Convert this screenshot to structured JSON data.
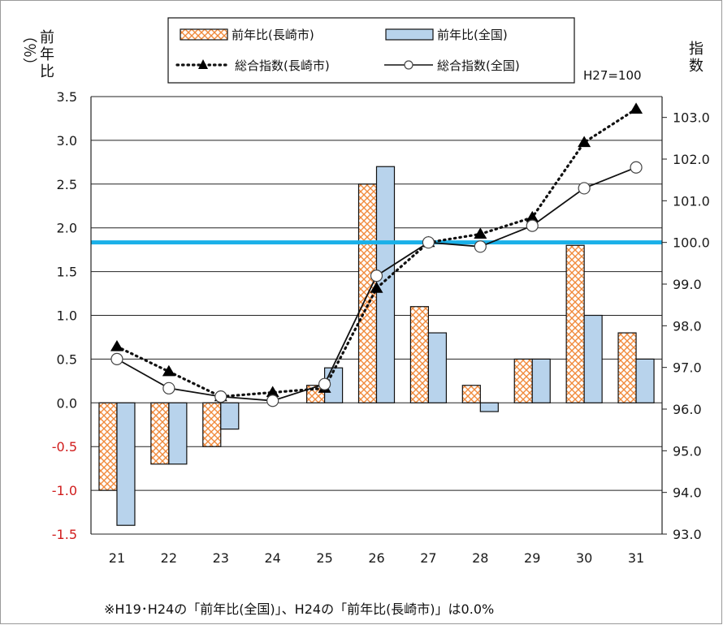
{
  "chart_data": {
    "type": "bar",
    "categories": [
      "21",
      "22",
      "23",
      "24",
      "25",
      "26",
      "27",
      "28",
      "29",
      "30",
      "31"
    ],
    "series": [
      {
        "name": "前年比(長崎市)",
        "type": "bar",
        "axis": "left",
        "pattern": "crosshatch-orange",
        "values": [
          -1.0,
          -0.7,
          -0.5,
          0.0,
          0.2,
          2.5,
          1.1,
          0.2,
          0.5,
          1.8,
          0.8
        ]
      },
      {
        "name": "前年比(全国)",
        "type": "bar",
        "axis": "left",
        "color": "#b8d3ec",
        "values": [
          -1.4,
          -0.7,
          -0.3,
          0.0,
          0.4,
          2.7,
          0.8,
          -0.1,
          0.5,
          1.0,
          0.5
        ]
      },
      {
        "name": "総合指数(長崎市)",
        "type": "line",
        "axis": "right",
        "style": "dotted",
        "marker": "triangle",
        "values": [
          97.5,
          96.9,
          96.3,
          96.4,
          96.5,
          98.9,
          100.0,
          100.2,
          100.6,
          102.4,
          103.2
        ]
      },
      {
        "name": "総合指数(全国)",
        "type": "line",
        "axis": "right",
        "style": "solid",
        "marker": "open-circle",
        "values": [
          97.2,
          96.5,
          96.3,
          96.2,
          96.6,
          99.2,
          100.0,
          99.9,
          100.4,
          101.3,
          101.8
        ]
      }
    ],
    "left_axis": {
      "label": "（％）前年比",
      "min": -1.5,
      "max": 3.5,
      "ticks": [
        "3.5",
        "3.0",
        "2.5",
        "2.0",
        "1.5",
        "1.0",
        "0.5",
        "0.0",
        "-0.5",
        "-1.0",
        "-1.5"
      ]
    },
    "right_axis": {
      "label": "指数",
      "min": 93.0,
      "max": 103.5,
      "ticks": [
        "103.0",
        "102.0",
        "101.0",
        "100.0",
        "99.0",
        "98.0",
        "97.0",
        "96.0",
        "95.0",
        "94.0",
        "93.0"
      ]
    },
    "reference_line": {
      "axis": "right",
      "value": 100.0,
      "color": "#1ab0e8"
    },
    "base_label": "H27=100",
    "grid": true,
    "legend_position": "top",
    "note": "※H19･H24の「前年比(全国)」、H24の「前年比(長崎市)」は0.0%"
  }
}
